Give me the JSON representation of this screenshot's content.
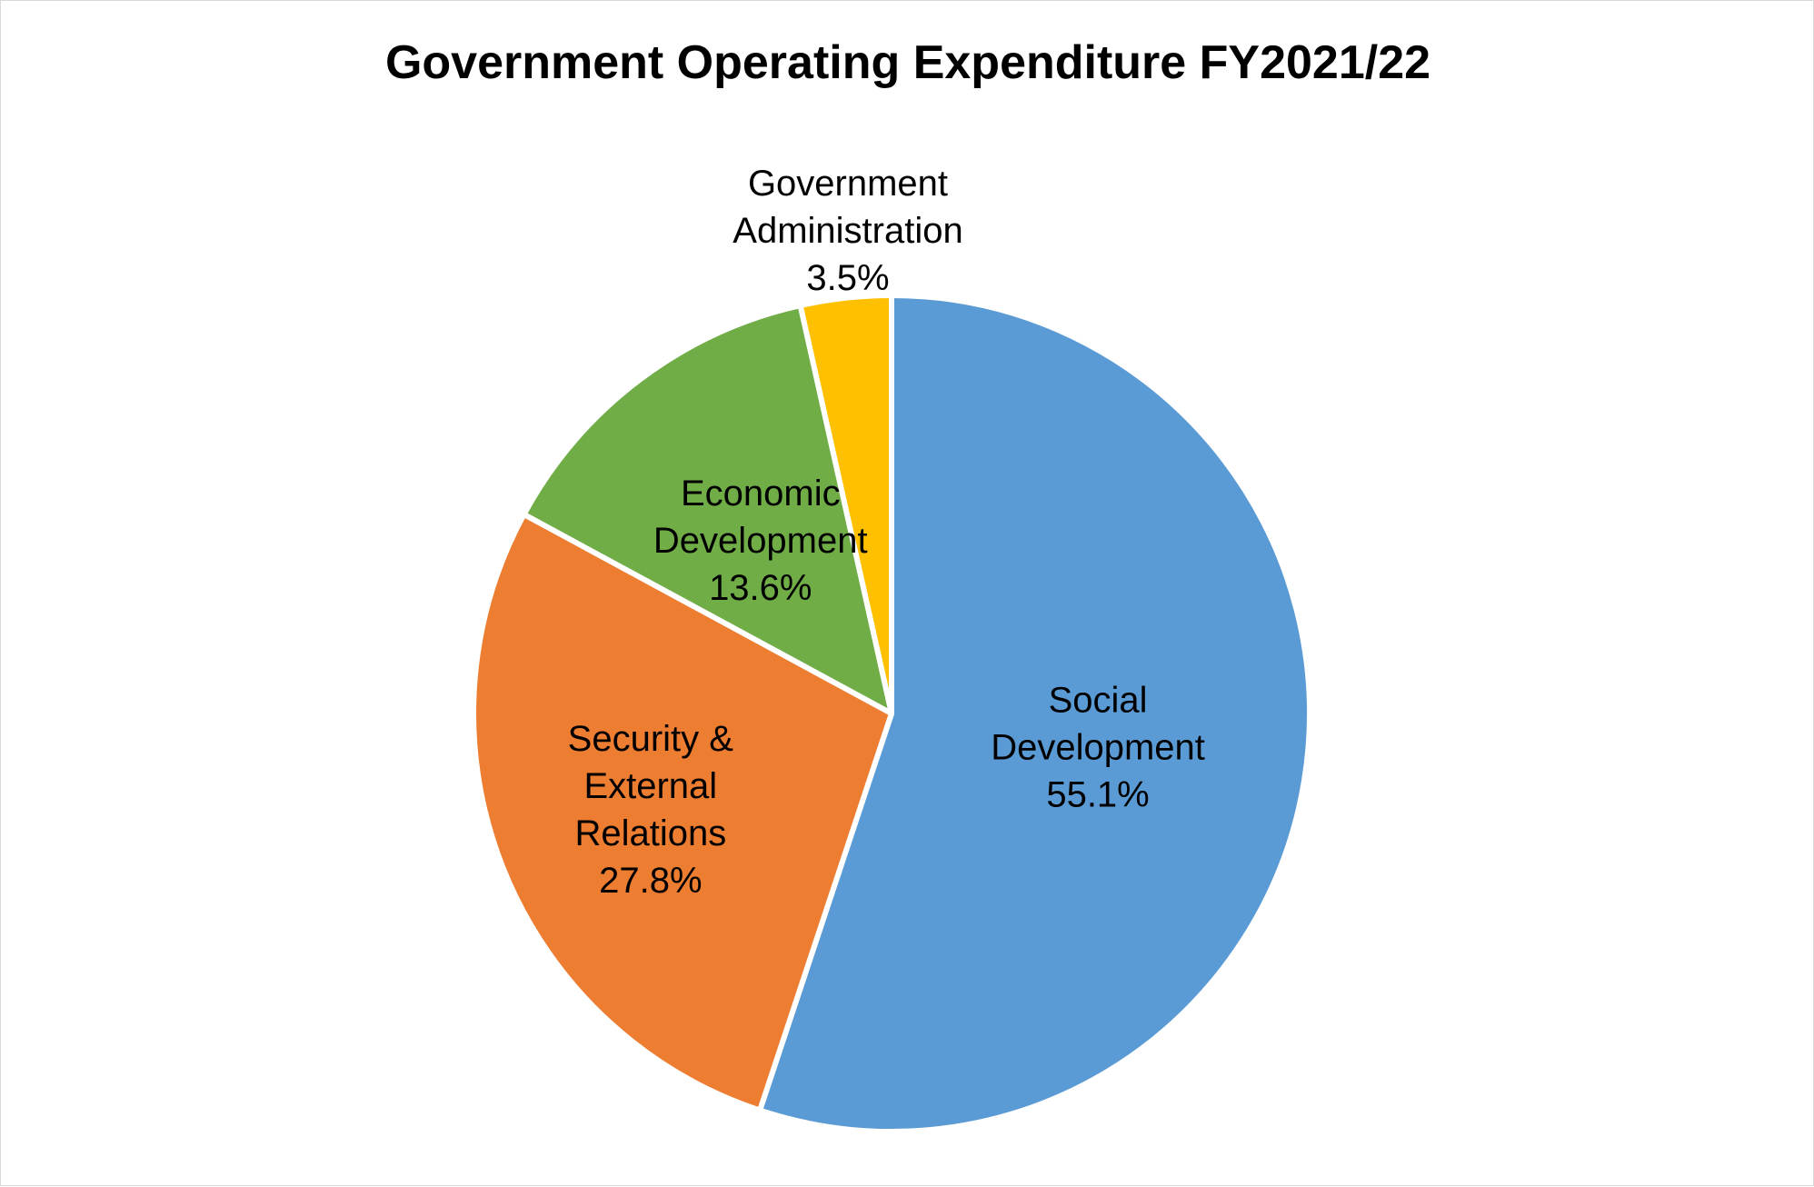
{
  "chart_data": {
    "type": "pie",
    "title": "Government Operating Expenditure FY2021/22",
    "slices": [
      {
        "label_lines": [
          "Social",
          "Development"
        ],
        "value": 55.1,
        "value_label": "55.1%",
        "color": "#5b9bd5"
      },
      {
        "label_lines": [
          "Security &",
          "External",
          "Relations"
        ],
        "value": 27.8,
        "value_label": "27.8%",
        "color": "#ed7d31"
      },
      {
        "label_lines": [
          "Economic",
          "Development"
        ],
        "value": 13.6,
        "value_label": "13.6%",
        "color": "#70ad47"
      },
      {
        "label_lines": [
          "Government",
          "Administration"
        ],
        "value": 3.5,
        "value_label": "3.5%",
        "color": "#ffc000"
      }
    ],
    "start_angle": "12 o'clock",
    "direction": "clockwise",
    "slice_border_color": "#ffffff"
  }
}
